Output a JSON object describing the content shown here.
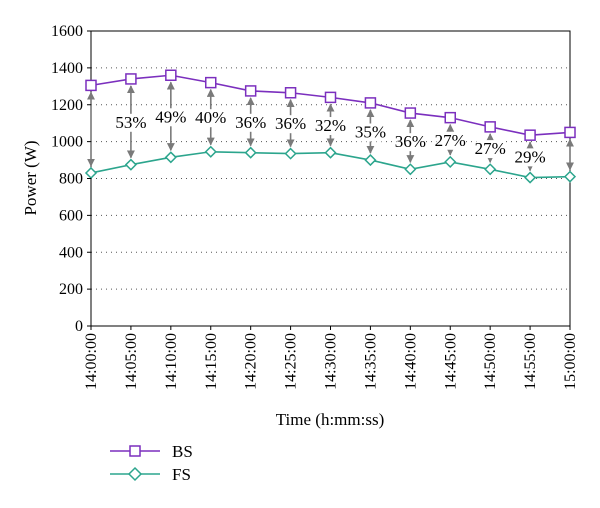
{
  "chart_data": {
    "type": "line",
    "xlabel": "Time (h:mm:ss)",
    "ylabel": "Power (W)",
    "ylim": [
      0,
      1600
    ],
    "yticks": [
      "0",
      "200",
      "400",
      "600",
      "800",
      "1000",
      "1200",
      "1400",
      "1600"
    ],
    "categories": [
      "14:00:00",
      "14:05:00",
      "14:10:00",
      "14:15:00",
      "14:20:00",
      "14:25:00",
      "14:30:00",
      "14:35:00",
      "14:40:00",
      "14:45:00",
      "14:50:00",
      "14:55:00",
      "15:00:00"
    ],
    "grid": "horizontal dotted",
    "legend_position": "bottom-left",
    "series": [
      {
        "name": "BS",
        "color": "#7b2fbe",
        "marker": "square",
        "values": [
          1305,
          1340,
          1360,
          1320,
          1275,
          1265,
          1240,
          1210,
          1155,
          1130,
          1080,
          1035,
          1050
        ]
      },
      {
        "name": "FS",
        "color": "#2ca58d",
        "marker": "diamond",
        "values": [
          830,
          875,
          915,
          945,
          940,
          935,
          940,
          900,
          850,
          890,
          850,
          805,
          810
        ]
      }
    ],
    "annotations": {
      "arrow_color": "#7a7a7a",
      "labels": [
        "",
        "53%",
        "49%",
        "40%",
        "36%",
        "36%",
        "32%",
        "35%",
        "36%",
        "27%",
        "27%",
        "29%",
        ""
      ]
    }
  }
}
